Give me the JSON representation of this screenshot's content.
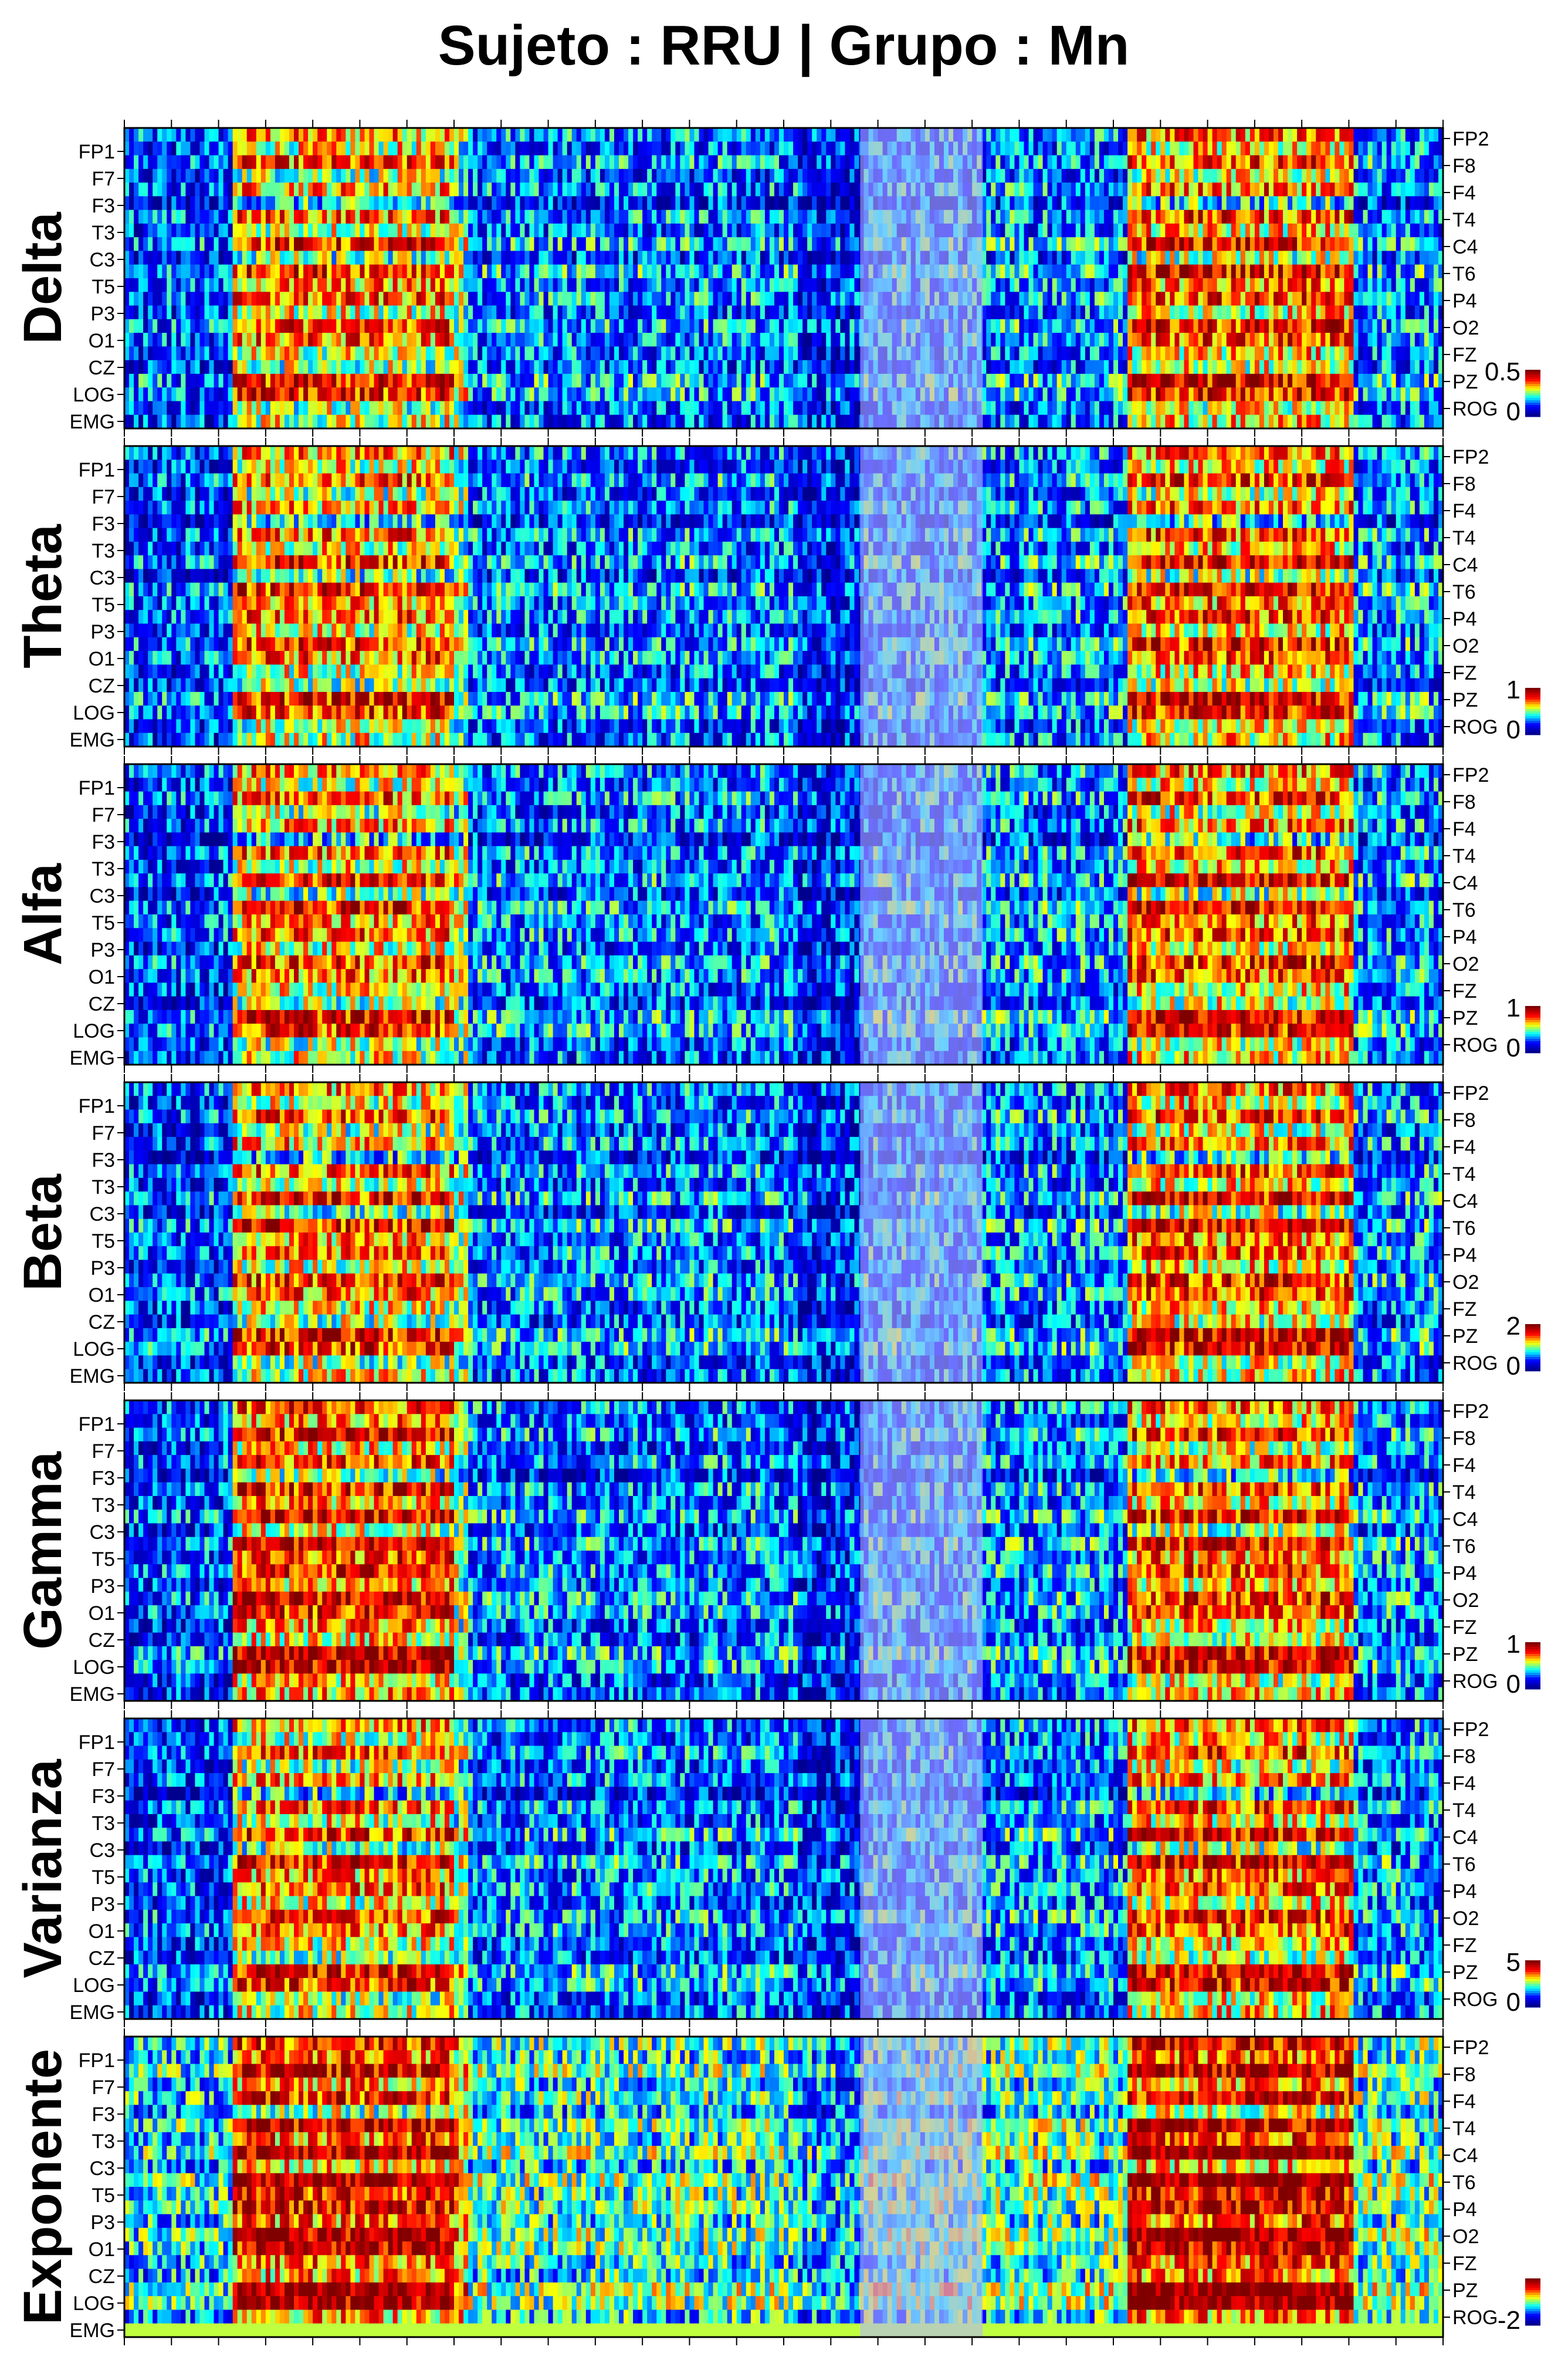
{
  "title": "Sujeto : RRU  | Grupo :  Mn",
  "chart_data": {
    "type": "heatmap",
    "title": "Sujeto : RRU  | Grupo :  Mn",
    "left_channels": [
      "FP1",
      "F7",
      "F3",
      "T3",
      "C3",
      "T5",
      "P3",
      "O1",
      "CZ",
      "LOG",
      "EMG"
    ],
    "right_channels": [
      "FP2",
      "F8",
      "F4",
      "T4",
      "C4",
      "T6",
      "P4",
      "O2",
      "FZ",
      "PZ",
      "ROG"
    ],
    "colormap": [
      "#00008f",
      "#0000ff",
      "#00ffff",
      "#ffff00",
      "#ff0000",
      "#800000"
    ],
    "highlight_color": "#b4b4ff",
    "panels": [
      {
        "band": "Delta",
        "cb_max": "0.5",
        "cb_min": "0"
      },
      {
        "band": "Theta",
        "cb_max": "1",
        "cb_min": "0"
      },
      {
        "band": "Alfa",
        "cb_max": "1",
        "cb_min": "0"
      },
      {
        "band": "Beta",
        "cb_max": "2",
        "cb_min": "0"
      },
      {
        "band": "Gamma",
        "cb_max": "1",
        "cb_min": "0"
      },
      {
        "band": "Varianza",
        "cb_max": "5",
        "cb_min": "0"
      },
      {
        "band": "Exponente",
        "cb_max": "",
        "cb_min": "-2"
      }
    ]
  }
}
